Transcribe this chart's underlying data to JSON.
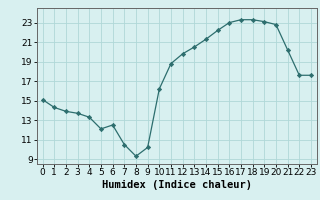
{
  "x": [
    0,
    1,
    2,
    3,
    4,
    5,
    6,
    7,
    8,
    9,
    10,
    11,
    12,
    13,
    14,
    15,
    16,
    17,
    18,
    19,
    20,
    21,
    22,
    23
  ],
  "y": [
    15.1,
    14.3,
    13.9,
    13.7,
    13.3,
    12.1,
    12.5,
    10.5,
    9.3,
    10.2,
    16.2,
    18.8,
    19.8,
    20.5,
    21.3,
    22.2,
    23.0,
    23.3,
    23.3,
    23.1,
    22.8,
    20.2,
    17.6,
    17.6
  ],
  "line_color": "#2d6e6e",
  "marker": "D",
  "marker_size": 2.2,
  "bg_color": "#d8f0f0",
  "grid_color": "#b0d8d8",
  "xlabel": "Humidex (Indice chaleur)",
  "xlim": [
    -0.5,
    23.5
  ],
  "ylim": [
    8.5,
    24.5
  ],
  "yticks": [
    9,
    11,
    13,
    15,
    17,
    19,
    21,
    23
  ],
  "xticks": [
    0,
    1,
    2,
    3,
    4,
    5,
    6,
    7,
    8,
    9,
    10,
    11,
    12,
    13,
    14,
    15,
    16,
    17,
    18,
    19,
    20,
    21,
    22,
    23
  ],
  "xlabel_fontsize": 7.5,
  "tick_fontsize": 6.5
}
